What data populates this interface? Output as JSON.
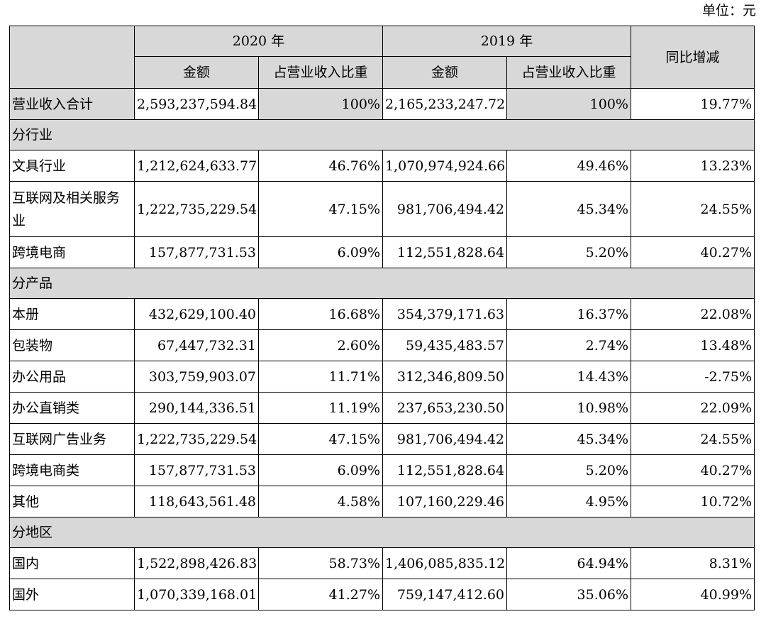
{
  "unit_label": "单位：元",
  "header": {
    "year_2020": "2020 年",
    "year_2019": "2019 年",
    "yoy": "同比增减",
    "amount": "金额",
    "share": "占营业收入比重"
  },
  "total": {
    "label": "营业收入合计",
    "amt2020": "2,593,237,594.84",
    "share2020": "100%",
    "amt2019": "2,165,233,247.72",
    "share2019": "100%",
    "yoy": "19.77%"
  },
  "sections": [
    {
      "title": "分行业",
      "rows": [
        {
          "label": "文具行业",
          "amt2020": "1,212,624,633.77",
          "share2020": "46.76%",
          "amt2019": "1,070,974,924.66",
          "share2019": "49.46%",
          "yoy": "13.23%"
        },
        {
          "label": "互联网及相关服务业",
          "amt2020": "1,222,735,229.54",
          "share2020": "47.15%",
          "amt2019": "981,706,494.42",
          "share2019": "45.34%",
          "yoy": "24.55%"
        },
        {
          "label": "跨境电商",
          "amt2020": "157,877,731.53",
          "share2020": "6.09%",
          "amt2019": "112,551,828.64",
          "share2019": "5.20%",
          "yoy": "40.27%"
        }
      ]
    },
    {
      "title": "分产品",
      "rows": [
        {
          "label": "本册",
          "amt2020": "432,629,100.40",
          "share2020": "16.68%",
          "amt2019": "354,379,171.63",
          "share2019": "16.37%",
          "yoy": "22.08%"
        },
        {
          "label": "包装物",
          "amt2020": "67,447,732.31",
          "share2020": "2.60%",
          "amt2019": "59,435,483.57",
          "share2019": "2.74%",
          "yoy": "13.48%"
        },
        {
          "label": "办公用品",
          "amt2020": "303,759,903.07",
          "share2020": "11.71%",
          "amt2019": "312,346,809.50",
          "share2019": "14.43%",
          "yoy": "-2.75%"
        },
        {
          "label": "办公直销类",
          "amt2020": "290,144,336.51",
          "share2020": "11.19%",
          "amt2019": "237,653,230.50",
          "share2019": "10.98%",
          "yoy": "22.09%"
        },
        {
          "label": "互联网广告业务",
          "amt2020": "1,222,735,229.54",
          "share2020": "47.15%",
          "amt2019": "981,706,494.42",
          "share2019": "45.34%",
          "yoy": "24.55%"
        },
        {
          "label": "跨境电商类",
          "amt2020": "157,877,731.53",
          "share2020": "6.09%",
          "amt2019": "112,551,828.64",
          "share2019": "5.20%",
          "yoy": "40.27%"
        },
        {
          "label": "其他",
          "amt2020": "118,643,561.48",
          "share2020": "4.58%",
          "amt2019": "107,160,229.46",
          "share2019": "4.95%",
          "yoy": "10.72%"
        }
      ]
    },
    {
      "title": "分地区",
      "rows": [
        {
          "label": "国内",
          "amt2020": "1,522,898,426.83",
          "share2020": "58.73%",
          "amt2019": "1,406,085,835.12",
          "share2019": "64.94%",
          "yoy": "8.31%"
        },
        {
          "label": "国外",
          "amt2020": "1,070,339,168.01",
          "share2020": "41.27%",
          "amt2019": "759,147,412.60",
          "share2019": "35.06%",
          "yoy": "40.99%"
        }
      ]
    }
  ],
  "colors": {
    "header_fill": "#d8d8d8",
    "border": "#000000"
  }
}
